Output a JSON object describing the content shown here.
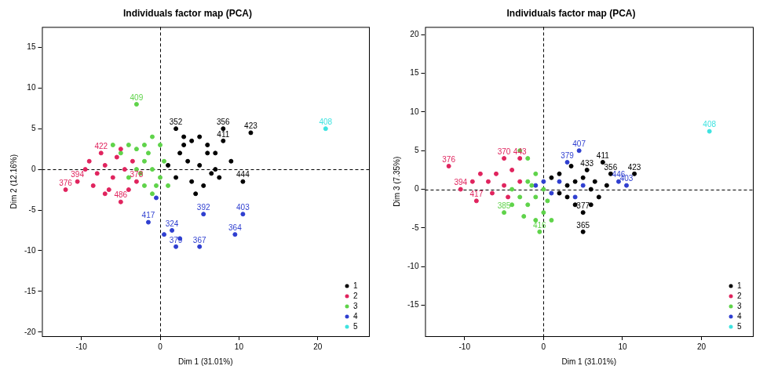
{
  "chart_data": [
    {
      "type": "scatter",
      "title": "Individuals factor map (PCA)",
      "x_label": "Dim 1 (31.01%)",
      "y_label": "Dim 2 (12.16%)",
      "xlim": [
        -15,
        26.5
      ],
      "ylim": [
        -20.5,
        17.5
      ],
      "xticks": [
        -10,
        0,
        10,
        20
      ],
      "yticks": [
        -20,
        -15,
        -10,
        -5,
        0,
        5,
        10,
        15
      ],
      "grid": false,
      "legend": "lower right",
      "marker": "circle",
      "series": [
        {
          "name": "1",
          "color": "#000000",
          "x": [
            2,
            3,
            4,
            5,
            6,
            7,
            8,
            9,
            10.5,
            11.5,
            8,
            2.5,
            3.5,
            5,
            6.5,
            7.5,
            4,
            5.5,
            1,
            2,
            3,
            6,
            7,
            4.5
          ],
          "y": [
            5,
            4,
            3.5,
            4,
            3,
            2,
            3.5,
            1,
            -1.5,
            4.5,
            5,
            2,
            1,
            0.5,
            -0.5,
            -1,
            -1.5,
            -2,
            0.5,
            -1,
            3,
            2,
            0,
            -3
          ],
          "point_labels": [
            "352",
            null,
            null,
            null,
            null,
            null,
            "411",
            null,
            "444",
            "423",
            "356",
            null,
            null,
            null,
            null,
            null,
            null,
            null,
            null,
            null,
            null,
            null,
            null,
            null
          ]
        },
        {
          "name": "2",
          "color": "#e0245e",
          "x": [
            -12,
            -10.5,
            -7.5,
            -5,
            -3,
            -9,
            -8,
            -7,
            -6,
            -5.5,
            -4.5,
            -6.5,
            -8.5,
            -7,
            -4,
            -9.5,
            -5,
            -3.5
          ],
          "y": [
            -2.5,
            -1.5,
            2,
            -4,
            -1.5,
            1,
            -0.5,
            0.5,
            -1,
            1.5,
            0,
            -2.5,
            -2,
            -3,
            -2.5,
            0,
            2.5,
            1
          ],
          "point_labels": [
            "376",
            "394",
            "422",
            "486",
            "378",
            null,
            null,
            null,
            null,
            null,
            null,
            null,
            null,
            null,
            null,
            null,
            null,
            null
          ]
        },
        {
          "name": "3",
          "color": "#5fd34a",
          "x": [
            -3,
            -4,
            -3,
            -2,
            -1,
            0,
            -5,
            -6,
            -2,
            -1,
            0,
            -3,
            -2,
            -1,
            0.5,
            -4,
            -1.5,
            -0.5,
            -2.5,
            1
          ],
          "y": [
            8,
            3,
            2.5,
            3,
            4,
            3,
            2,
            3,
            1,
            0,
            -1,
            0,
            -2,
            -3,
            1,
            -1,
            2,
            -2,
            -0.5,
            -2
          ],
          "point_labels": [
            "409",
            null,
            null,
            null,
            null,
            null,
            null,
            null,
            null,
            null,
            null,
            null,
            null,
            null,
            null,
            null,
            null,
            null,
            null,
            null
          ]
        },
        {
          "name": "4",
          "color": "#2f3fd0",
          "x": [
            -1.5,
            1.5,
            2,
            5,
            5.5,
            10.5,
            9.5,
            0.5,
            2.5,
            -0.5
          ],
          "y": [
            -6.5,
            -7.5,
            -9.5,
            -9.5,
            -5.5,
            -5.5,
            -8,
            -8,
            -8.5,
            -3.5
          ],
          "point_labels": [
            "417",
            "324",
            "379",
            "367",
            "392",
            "403",
            "364",
            null,
            null,
            null
          ]
        },
        {
          "name": "5",
          "color": "#3fe3e0",
          "x": [
            21
          ],
          "y": [
            5
          ],
          "point_labels": [
            "408"
          ]
        }
      ]
    },
    {
      "type": "scatter",
      "title": "Individuals factor map (PCA)",
      "x_label": "Dim 1 (31.01%)",
      "y_label": "Dim 3 (7.35%)",
      "xlim": [
        -15,
        26.5
      ],
      "ylim": [
        -19,
        21
      ],
      "xticks": [
        -10,
        0,
        10,
        20
      ],
      "yticks": [
        -15,
        -10,
        -5,
        0,
        5,
        10,
        15,
        20
      ],
      "grid": false,
      "legend": "lower right",
      "marker": "circle",
      "series": [
        {
          "name": "1",
          "color": "#000000",
          "x": [
            11.5,
            7.5,
            8.5,
            5.5,
            5,
            5,
            4,
            3,
            2,
            6,
            7,
            6,
            3,
            2,
            4,
            1,
            5,
            8,
            3.5,
            6.5
          ],
          "y": [
            2,
            3.5,
            2,
            2.5,
            -5.5,
            -3,
            1,
            0.5,
            2,
            0,
            -1,
            -2,
            -1,
            -0.5,
            -2,
            1.5,
            1.5,
            0.5,
            3,
            1
          ],
          "point_labels": [
            "423",
            "411",
            "356",
            "433",
            "365",
            "377",
            null,
            null,
            null,
            null,
            null,
            null,
            null,
            null,
            null,
            null,
            null,
            null,
            null,
            null
          ]
        },
        {
          "name": "2",
          "color": "#e0245e",
          "x": [
            -12,
            -5,
            -10.5,
            -3,
            -8.5,
            -7,
            -6,
            -5,
            -4,
            -8,
            -6.5,
            -3,
            -4.5,
            -9
          ],
          "y": [
            3,
            4,
            0,
            4,
            -1.5,
            1,
            2,
            0.5,
            2.5,
            2,
            -0.5,
            1,
            -1,
            1
          ],
          "point_labels": [
            "376",
            "370",
            "394",
            "443",
            "417",
            null,
            null,
            null,
            null,
            null,
            null,
            null,
            null,
            null
          ]
        },
        {
          "name": "3",
          "color": "#5fd34a",
          "x": [
            -5,
            -0.5,
            -2,
            -1,
            0,
            -3,
            -4,
            -2,
            -1,
            -3,
            -2,
            0,
            1,
            -1,
            -4,
            0.5,
            -2.5,
            -1.5
          ],
          "y": [
            -3,
            -5.5,
            -2,
            -1,
            0,
            -1,
            0,
            1,
            2,
            5,
            4,
            -3,
            -4,
            -4,
            -2,
            -1.5,
            -3.5,
            0.5
          ],
          "point_labels": [
            "385",
            "416",
            null,
            null,
            null,
            null,
            null,
            null,
            null,
            null,
            null,
            null,
            null,
            null,
            null,
            null,
            null,
            null
          ]
        },
        {
          "name": "4",
          "color": "#2f3fd0",
          "x": [
            4.5,
            10.5,
            9.5,
            3,
            1,
            2,
            0,
            5,
            4,
            -1
          ],
          "y": [
            5,
            0.5,
            1,
            3.5,
            -0.5,
            1,
            1,
            0.5,
            -1,
            0.5
          ],
          "point_labels": [
            "407",
            "403",
            "446",
            "379",
            null,
            null,
            null,
            null,
            null,
            null
          ]
        },
        {
          "name": "5",
          "color": "#3fe3e0",
          "x": [
            21
          ],
          "y": [
            7.5
          ],
          "point_labels": [
            "408"
          ]
        }
      ]
    }
  ]
}
